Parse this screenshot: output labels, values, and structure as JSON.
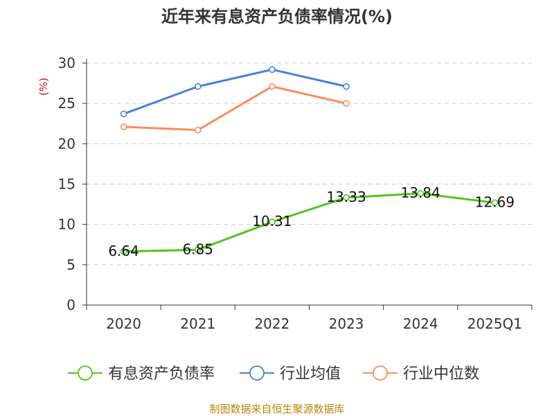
{
  "chart_data": {
    "type": "line",
    "title": "近年来有息资产负债率情况(%)",
    "ylabel": "(%)",
    "xlabel": "",
    "categories": [
      "2020",
      "2021",
      "2022",
      "2023",
      "2024",
      "2025Q1"
    ],
    "ylim": [
      0,
      30
    ],
    "yticks": [
      0,
      5,
      10,
      15,
      20,
      25,
      30
    ],
    "grid": true,
    "legend_position": "bottom",
    "series": [
      {
        "name": "有息资产负债率",
        "color": "#52c41a",
        "values": [
          6.64,
          6.85,
          10.31,
          13.33,
          13.84,
          12.69
        ],
        "labels": [
          "6.64",
          "6.85",
          "10.31",
          "13.33",
          "13.84",
          "12.69"
        ]
      },
      {
        "name": "行业均值",
        "color": "#4a7fdc",
        "values": [
          23.7,
          27.1,
          29.2,
          27.1,
          null,
          null
        ]
      },
      {
        "name": "行业中位数",
        "color": "#f98d5b",
        "values": [
          22.1,
          21.7,
          27.1,
          25.0,
          null,
          null
        ]
      }
    ],
    "source": "制图数据来自恒生聚源数据库"
  }
}
